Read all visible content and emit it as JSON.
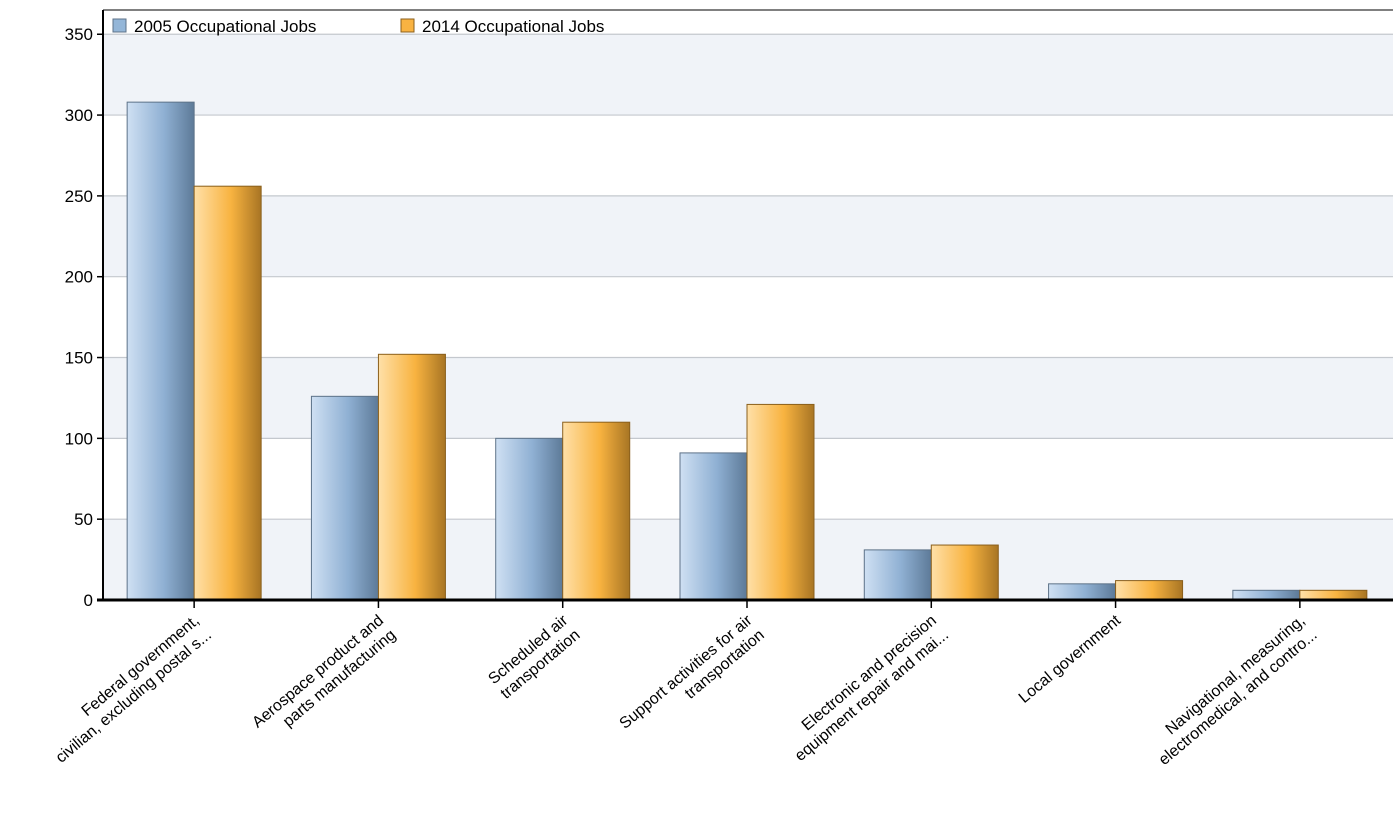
{
  "chart_data": {
    "type": "bar",
    "title": "",
    "xlabel": "",
    "ylabel": "",
    "ylim": [
      0,
      350
    ],
    "yticks": [
      0,
      50,
      100,
      150,
      200,
      250,
      300,
      350
    ],
    "grid": true,
    "legend_position": "top-left",
    "categories": [
      [
        "Federal government,",
        "civilian, excluding postal s..."
      ],
      [
        "Aerospace product and",
        "parts manufacturing"
      ],
      [
        "Scheduled air",
        "transportation"
      ],
      [
        "Support activities for air",
        "transportation"
      ],
      [
        "Electronic and precision",
        "equipment repair and mai..."
      ],
      [
        "Local government"
      ],
      [
        "Navigational, measuring,",
        "electromedical, and contro..."
      ]
    ],
    "series": [
      {
        "name": "2005 Occupational Jobs",
        "color": "#94b6d8",
        "values": [
          308,
          126,
          100,
          91,
          31,
          10,
          6
        ]
      },
      {
        "name": "2014 Occupational Jobs",
        "color": "#f9b342",
        "values": [
          256,
          152,
          110,
          121,
          34,
          12,
          6
        ]
      }
    ]
  }
}
